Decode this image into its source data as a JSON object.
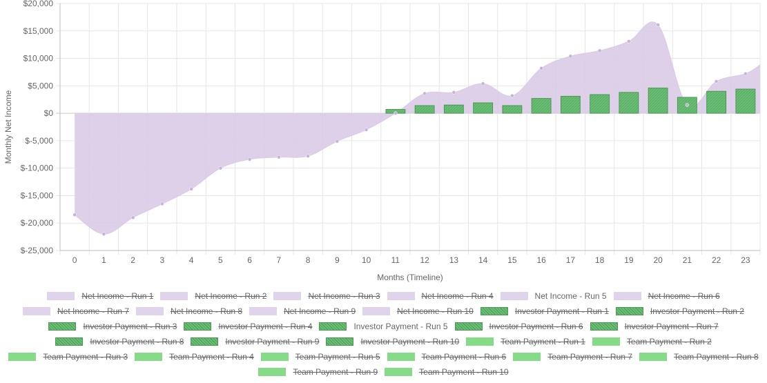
{
  "chart_data": {
    "type": "line",
    "title": "",
    "xlabel": "Months (Timeline)",
    "ylabel": "Monthly Net Income",
    "x": [
      0,
      1,
      2,
      3,
      4,
      5,
      6,
      7,
      8,
      9,
      10,
      11,
      12,
      13,
      14,
      15,
      16,
      17,
      18,
      19,
      20,
      21,
      22,
      23
    ],
    "xlim": [
      -0.5,
      23.5
    ],
    "ylim": [
      -25000,
      20000
    ],
    "y_ticks": [
      20000,
      15000,
      10000,
      5000,
      0,
      -5000,
      -10000,
      -15000,
      -20000,
      -25000
    ],
    "y_tick_labels": [
      "$20,000",
      "$15,000",
      "$10,000",
      "$5,000",
      "$0",
      "$-5,000",
      "$-10,000",
      "$-15,000",
      "$-20,000",
      "$-25,000"
    ],
    "grid": true,
    "legend_position": "bottom",
    "series": [
      {
        "name": "Net Income - Run 5",
        "kind": "area",
        "color": "#d9cbe6",
        "point_color": "#c6b3d9",
        "values": [
          -18500,
          -22000,
          -19000,
          -16500,
          -13800,
          -10000,
          -8400,
          -8000,
          -7800,
          -5100,
          -3000,
          0,
          3600,
          3800,
          5400,
          3200,
          8200,
          10400,
          11400,
          13100,
          16100,
          1500,
          5800,
          7200
        ],
        "end_value": 8800
      },
      {
        "name": "Investor Payment - Run 5",
        "kind": "bar",
        "color": "#6bbf75",
        "edge_color": "#4a9a55",
        "values": [
          0,
          0,
          0,
          0,
          0,
          0,
          0,
          0,
          0,
          0,
          0,
          700,
          1400,
          1500,
          1900,
          1400,
          2700,
          3100,
          3400,
          3800,
          4600,
          2900,
          4000,
          4400
        ]
      }
    ]
  },
  "legend": {
    "rows": [
      [
        {
          "label": "Net Income - Run 1",
          "hidden": true,
          "type": "area"
        },
        {
          "label": "Net Income - Run 2",
          "hidden": true,
          "type": "area"
        },
        {
          "label": "Net Income - Run 3",
          "hidden": true,
          "type": "area"
        },
        {
          "label": "Net Income - Run 4",
          "hidden": true,
          "type": "area"
        },
        {
          "label": "Net Income - Run 5",
          "hidden": false,
          "type": "area"
        },
        {
          "label": "Net Income - Run 6",
          "hidden": true,
          "type": "area"
        }
      ],
      [
        {
          "label": "Net Income - Run 7",
          "hidden": true,
          "type": "area"
        },
        {
          "label": "Net Income - Run 8",
          "hidden": true,
          "type": "area"
        },
        {
          "label": "Net Income - Run 9",
          "hidden": true,
          "type": "area"
        },
        {
          "label": "Net Income - Run 10",
          "hidden": true,
          "type": "area"
        },
        {
          "label": "Investor Payment - Run 1",
          "hidden": true,
          "type": "investor"
        },
        {
          "label": "Investor Payment - Run 2",
          "hidden": true,
          "type": "investor"
        }
      ],
      [
        {
          "label": "Investor Payment - Run 3",
          "hidden": true,
          "type": "investor"
        },
        {
          "label": "Investor Payment - Run 4",
          "hidden": true,
          "type": "investor"
        },
        {
          "label": "Investor Payment - Run 5",
          "hidden": false,
          "type": "investor"
        },
        {
          "label": "Investor Payment - Run 6",
          "hidden": true,
          "type": "investor"
        },
        {
          "label": "Investor Payment - Run 7",
          "hidden": true,
          "type": "investor"
        }
      ],
      [
        {
          "label": "Investor Payment - Run 8",
          "hidden": true,
          "type": "investor"
        },
        {
          "label": "Investor Payment - Run 9",
          "hidden": true,
          "type": "investor"
        },
        {
          "label": "Investor Payment - Run 10",
          "hidden": true,
          "type": "investor"
        },
        {
          "label": "Team Payment - Run 1",
          "hidden": true,
          "type": "team"
        },
        {
          "label": "Team Payment - Run 2",
          "hidden": true,
          "type": "team"
        }
      ],
      [
        {
          "label": "Team Payment - Run 3",
          "hidden": true,
          "type": "team"
        },
        {
          "label": "Team Payment - Run 4",
          "hidden": true,
          "type": "team"
        },
        {
          "label": "Team Payment - Run 5",
          "hidden": true,
          "type": "team"
        },
        {
          "label": "Team Payment - Run 6",
          "hidden": true,
          "type": "team"
        },
        {
          "label": "Team Payment - Run 7",
          "hidden": true,
          "type": "team"
        },
        {
          "label": "Team Payment - Run 8",
          "hidden": true,
          "type": "team"
        }
      ],
      [
        {
          "label": "Team Payment - Run 9",
          "hidden": true,
          "type": "team"
        },
        {
          "label": "Team Payment - Run 10",
          "hidden": true,
          "type": "team"
        }
      ]
    ],
    "swatch_colors": {
      "area": "#e0d4ec",
      "investor": "#6bbf75",
      "investor_edge": "#4a9a55",
      "team": "#86dc86"
    }
  }
}
